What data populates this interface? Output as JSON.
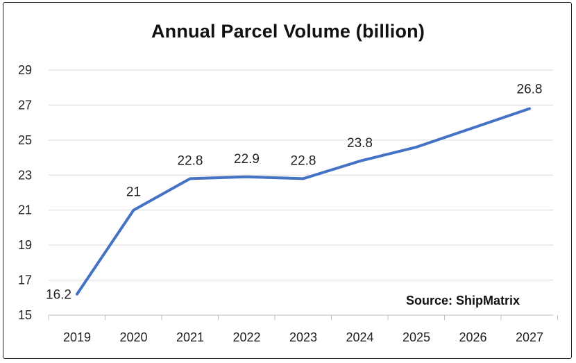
{
  "chart_data": {
    "type": "line",
    "title": "Annual Parcel Volume (billion)",
    "categories": [
      "2019",
      "2020",
      "2021",
      "2022",
      "2023",
      "2024",
      "2025",
      "2026",
      "2027"
    ],
    "series": [
      {
        "values": [
          16.2,
          21,
          22.8,
          22.9,
          22.8,
          23.8,
          24.6,
          25.7,
          26.8
        ]
      }
    ],
    "data_labels": [
      "16.2",
      "21",
      "22.8",
      "22.9",
      "22.8",
      "23.8",
      "",
      "",
      "26.8"
    ],
    "y_ticks": [
      "15",
      "17",
      "19",
      "21",
      "23",
      "25",
      "27",
      "29"
    ],
    "ylim": [
      15,
      29
    ],
    "grid": true,
    "legend": "none",
    "colors": {
      "line": "#4472C4",
      "grid": "#d9d9d9",
      "axis": "#bfbfbf"
    }
  },
  "source_text": "Source: ShipMatrix"
}
